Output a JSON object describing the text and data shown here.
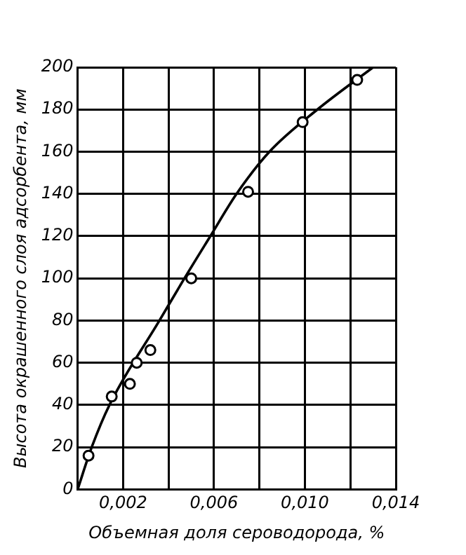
{
  "chart_data": {
    "type": "scatter",
    "xlabel": "Объемная доля сероводорода, %",
    "ylabel": "Высота окрашенного слоя адсорбента, мм",
    "series": [
      {
        "marker": "circle",
        "color": "#000000",
        "x": [
          0.00048,
          0.0015,
          0.0023,
          0.0026,
          0.0032,
          0.005,
          0.0075,
          0.0099,
          0.0123
        ],
        "values": [
          16,
          44,
          50,
          60,
          66,
          100,
          141,
          174,
          194
        ]
      },
      {
        "type": "line",
        "marker": "none",
        "color": "#000000",
        "x": [
          0,
          0.00062,
          0.0014,
          0.0036,
          0.0047,
          0.00584,
          0.00699,
          0.00844,
          0.01055,
          0.013
        ],
        "values": [
          0,
          20,
          40,
          80,
          100,
          120,
          140,
          160,
          180,
          200
        ]
      }
    ],
    "xlim": [
      0,
      0.014
    ],
    "ylim": [
      0,
      200
    ],
    "xticks": [
      {
        "value": 0,
        "label": null
      },
      {
        "value": 0.002,
        "label": "0,002"
      },
      {
        "value": 0.004,
        "label": null
      },
      {
        "value": 0.006,
        "label": "0,006"
      },
      {
        "value": 0.008,
        "label": null
      },
      {
        "value": 0.01,
        "label": "0,010"
      },
      {
        "value": 0.012,
        "label": null
      },
      {
        "value": 0.014,
        "label": "0,014"
      }
    ],
    "yticks": [
      0,
      20,
      40,
      60,
      80,
      100,
      120,
      140,
      160,
      180,
      200
    ],
    "grid": true
  }
}
